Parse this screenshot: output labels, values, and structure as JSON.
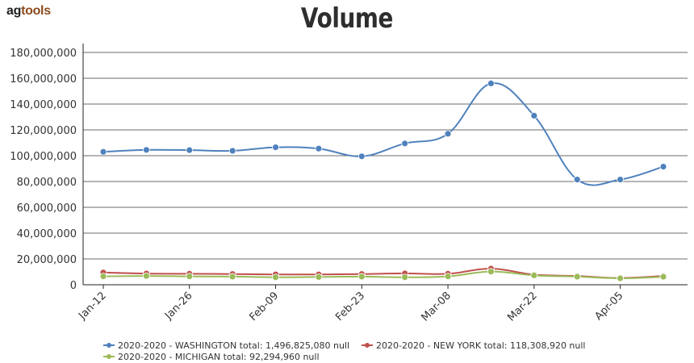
{
  "branding": {
    "logo_part1": "ag",
    "logo_part2": "tools"
  },
  "chart_data": {
    "type": "line",
    "title": "Volume",
    "xlabel": "",
    "ylabel": "",
    "ylim": [
      0,
      180000000
    ],
    "yticks": [
      0,
      20000000,
      40000000,
      60000000,
      80000000,
      100000000,
      120000000,
      140000000,
      160000000,
      180000000
    ],
    "ytick_labels": [
      "0",
      "20,000,000",
      "40,000,000",
      "60,000,000",
      "80,000,000",
      "100,000,000",
      "120,000,000",
      "140,000,000",
      "160,000,000",
      "180,000,000"
    ],
    "xtick_labels": [
      "Jan-12",
      "Jan-26",
      "Feb-09",
      "Feb-23",
      "Mar-08",
      "Mar-22",
      "Apr-05"
    ],
    "xtick_positions": [
      0,
      2,
      4,
      6,
      8,
      10,
      12
    ],
    "x": [
      "Jan-12",
      "Jan-19",
      "Jan-26",
      "Feb-02",
      "Feb-09",
      "Feb-16",
      "Feb-23",
      "Mar-01",
      "Mar-08",
      "Mar-15",
      "Mar-22",
      "Mar-29",
      "Apr-05",
      "Apr-12"
    ],
    "grid": true,
    "legend_position": "bottom",
    "series": [
      {
        "name": "2020-2020 - WASHINGTON total: 1,496,825,080 null",
        "color": "#4f81bd",
        "values": [
          103000000,
          104500000,
          104300000,
          103800000,
          106500000,
          105500000,
          99500000,
          109500000,
          117000000,
          156000000,
          131000000,
          81500000,
          81500000,
          91500000
        ]
      },
      {
        "name": "2020-2020 - NEW YORK total: 118,308,920 null",
        "color": "#c0504d",
        "values": [
          9500000,
          8700000,
          8500000,
          8300000,
          8000000,
          8000000,
          8300000,
          8800000,
          8500000,
          12500000,
          7800000,
          6800000,
          5200000,
          6800000
        ]
      },
      {
        "name": "2020-2020 - MICHIGAN total: 92,294,960 null",
        "color": "#9bbb59",
        "values": [
          6500000,
          6800000,
          6500000,
          6300000,
          5800000,
          6000000,
          6300000,
          5800000,
          6500000,
          10200000,
          7300000,
          6300000,
          5000000,
          6200000
        ]
      }
    ]
  }
}
